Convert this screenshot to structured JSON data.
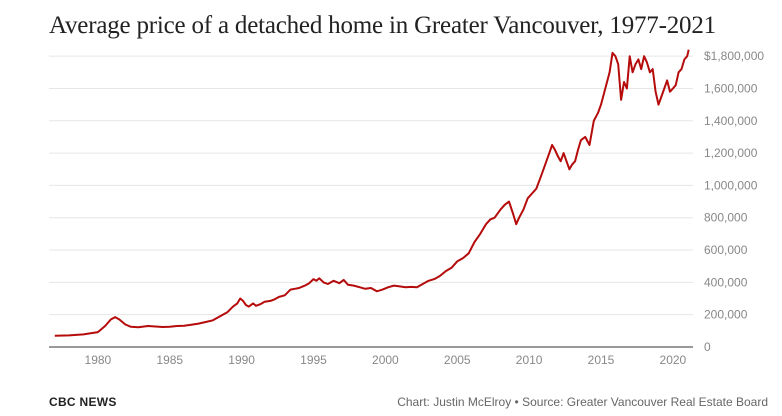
{
  "title": "Average price of a detached home in Greater Vancouver, 1977-2021",
  "footer": {
    "brand": "CBC NEWS",
    "credit": "Chart: Justin McElroy • Source: Greater Vancouver Real Estate Board"
  },
  "colors": {
    "line": "#b50b0b",
    "grid": "#e6e6e6",
    "axis": "#333333",
    "tick_text": "#888888"
  },
  "chart_data": {
    "type": "line",
    "title": "Average price of a detached home in Greater Vancouver, 1977-2021",
    "xlabel": "",
    "ylabel": "",
    "xlim": [
      1976.6,
      2021.4
    ],
    "ylim": [
      0,
      1900000
    ],
    "grid": true,
    "y_axis_position": "right",
    "x_ticks": [
      1980,
      1985,
      1990,
      1995,
      2000,
      2005,
      2010,
      2015,
      2020
    ],
    "x_tick_labels": [
      "1980",
      "1985",
      "1990",
      "1995",
      "2000",
      "2005",
      "2010",
      "2015",
      "2020"
    ],
    "y_ticks": [
      0,
      200000,
      400000,
      600000,
      800000,
      1000000,
      1200000,
      1400000,
      1600000,
      1800000
    ],
    "y_tick_labels": [
      "0",
      "200,000",
      "400,000",
      "600,000",
      "800,000",
      "1,000,000",
      "1,200,000",
      "1,400,000",
      "1,600,000",
      "$1,800,000"
    ],
    "series": [
      {
        "x": [
          1977.0,
          1978.0,
          1979.0,
          1980.0,
          1980.5,
          1980.9,
          1981.2,
          1981.5,
          1981.9,
          1982.3,
          1982.8,
          1983.5,
          1984.0,
          1984.5,
          1985.0,
          1985.5,
          1986.0,
          1986.5,
          1987.0,
          1987.5,
          1988.0,
          1988.5,
          1989.0,
          1989.4,
          1989.7,
          1989.9,
          1990.1,
          1990.3,
          1990.5,
          1990.8,
          1991.0,
          1991.3,
          1991.6,
          1992.0,
          1992.3,
          1992.6,
          1993.0,
          1993.4,
          1993.7,
          1994.0,
          1994.4,
          1994.7,
          1995.0,
          1995.2,
          1995.4,
          1995.7,
          1996.0,
          1996.4,
          1996.8,
          1997.1,
          1997.4,
          1997.8,
          1998.2,
          1998.6,
          1999.0,
          1999.4,
          1999.8,
          2000.2,
          2000.6,
          2001.0,
          2001.4,
          2001.8,
          2002.2,
          2002.6,
          2003.0,
          2003.4,
          2003.8,
          2004.2,
          2004.6,
          2005.0,
          2005.4,
          2005.8,
          2006.2,
          2006.6,
          2007.0,
          2007.3,
          2007.6,
          2008.0,
          2008.3,
          2008.6,
          2008.9,
          2009.1,
          2009.3,
          2009.6,
          2009.9,
          2010.2,
          2010.5,
          2010.8,
          2011.0,
          2011.2,
          2011.4,
          2011.6,
          2011.8,
          2012.0,
          2012.2,
          2012.4,
          2012.6,
          2012.8,
          2013.0,
          2013.2,
          2013.4,
          2013.6,
          2013.9,
          2014.2,
          2014.5,
          2014.8,
          2015.0,
          2015.3,
          2015.6,
          2015.8,
          2016.0,
          2016.2,
          2016.4,
          2016.6,
          2016.8,
          2017.0,
          2017.2,
          2017.4,
          2017.6,
          2017.8,
          2018.0,
          2018.2,
          2018.4,
          2018.6,
          2018.8,
          2019.0,
          2019.2,
          2019.4,
          2019.6,
          2019.8,
          2020.0,
          2020.2,
          2020.4,
          2020.6,
          2020.8,
          2021.0,
          2021.1
        ],
        "y": [
          70000,
          72000,
          78000,
          92000,
          130000,
          170000,
          185000,
          170000,
          140000,
          125000,
          122000,
          130000,
          127000,
          124000,
          125000,
          130000,
          132000,
          138000,
          145000,
          155000,
          165000,
          190000,
          215000,
          250000,
          270000,
          300000,
          285000,
          260000,
          250000,
          270000,
          255000,
          265000,
          280000,
          285000,
          295000,
          310000,
          320000,
          355000,
          360000,
          365000,
          380000,
          395000,
          420000,
          410000,
          425000,
          400000,
          390000,
          410000,
          395000,
          415000,
          385000,
          380000,
          370000,
          360000,
          365000,
          345000,
          355000,
          370000,
          380000,
          375000,
          370000,
          372000,
          370000,
          390000,
          410000,
          420000,
          440000,
          470000,
          490000,
          530000,
          550000,
          580000,
          650000,
          700000,
          760000,
          790000,
          800000,
          850000,
          880000,
          900000,
          820000,
          760000,
          800000,
          850000,
          920000,
          950000,
          980000,
          1050000,
          1100000,
          1150000,
          1200000,
          1250000,
          1220000,
          1180000,
          1150000,
          1200000,
          1150000,
          1100000,
          1130000,
          1150000,
          1220000,
          1280000,
          1300000,
          1250000,
          1400000,
          1450000,
          1500000,
          1600000,
          1700000,
          1820000,
          1800000,
          1750000,
          1530000,
          1640000,
          1600000,
          1800000,
          1700000,
          1750000,
          1780000,
          1720000,
          1800000,
          1760000,
          1700000,
          1720000,
          1580000,
          1500000,
          1550000,
          1600000,
          1650000,
          1580000,
          1600000,
          1620000,
          1700000,
          1720000,
          1780000,
          1800000,
          1840000
        ]
      }
    ]
  }
}
